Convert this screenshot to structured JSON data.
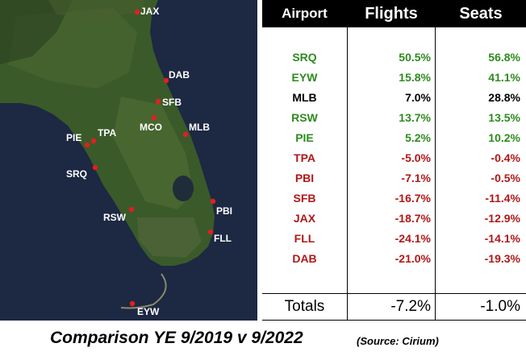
{
  "map": {
    "airports": [
      {
        "code": "JAX",
        "label": "JAX"
      },
      {
        "code": "DAB",
        "label": "DAB"
      },
      {
        "code": "SFB",
        "label": "SFB"
      },
      {
        "code": "MCO",
        "label": "MCO"
      },
      {
        "code": "MLB",
        "label": "MLB"
      },
      {
        "code": "TPA",
        "label": "TPA"
      },
      {
        "code": "PIE",
        "label": "PIE"
      },
      {
        "code": "SRQ",
        "label": "SRQ"
      },
      {
        "code": "PBI",
        "label": "PBI"
      },
      {
        "code": "RSW",
        "label": "RSW"
      },
      {
        "code": "FLL",
        "label": "FLL"
      },
      {
        "code": "EYW",
        "label": "EYW"
      }
    ],
    "colors": {
      "water": "#1f2a44",
      "land": "#2f4a24",
      "marker": "#e02020"
    }
  },
  "table": {
    "headers": {
      "airport": "Airport",
      "flights": "Flights",
      "seats": "Seats"
    },
    "rows": [
      {
        "airport": "SRQ",
        "flights": "50.5%",
        "seats": "56.8%",
        "tone": "pos"
      },
      {
        "airport": "EYW",
        "flights": "15.8%",
        "seats": "41.1%",
        "tone": "pos"
      },
      {
        "airport": "MLB",
        "flights": "7.0%",
        "seats": "28.8%",
        "tone": "neutral"
      },
      {
        "airport": "RSW",
        "flights": "13.7%",
        "seats": "13.5%",
        "tone": "pos"
      },
      {
        "airport": "PIE",
        "flights": "5.2%",
        "seats": "10.2%",
        "tone": "pos"
      },
      {
        "airport": "TPA",
        "flights": "-5.0%",
        "seats": "-0.4%",
        "tone": "neg"
      },
      {
        "airport": "PBI",
        "flights": "-7.1%",
        "seats": "-0.5%",
        "tone": "neg"
      },
      {
        "airport": "SFB",
        "flights": "-16.7%",
        "seats": "-11.4%",
        "tone": "neg"
      },
      {
        "airport": "JAX",
        "flights": "-18.7%",
        "seats": "-12.9%",
        "tone": "neg"
      },
      {
        "airport": "FLL",
        "flights": "-24.1%",
        "seats": "-14.1%",
        "tone": "neg"
      },
      {
        "airport": "DAB",
        "flights": "-21.0%",
        "seats": "-19.3%",
        "tone": "neg"
      }
    ],
    "totals": {
      "label": "Totals",
      "flights": "-7.2%",
      "seats": "-1.0%"
    },
    "colors": {
      "pos": "#2e8b1e",
      "neg": "#b01818",
      "neutral": "#000000",
      "header_bg": "#000000"
    }
  },
  "caption": {
    "main": "Comparison YE 9/2019 v 9/2022",
    "source": "(Source: Cirium)"
  }
}
